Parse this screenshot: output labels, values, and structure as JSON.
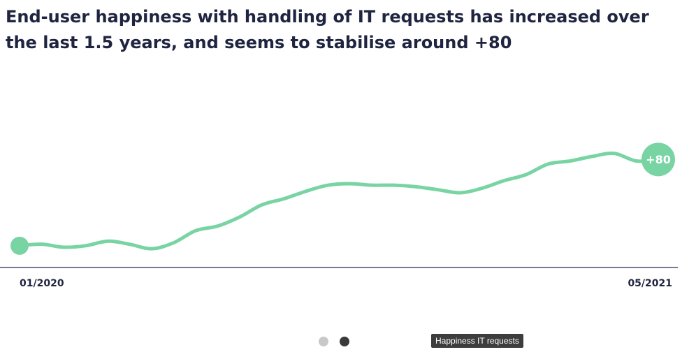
{
  "title": "End-user happiness with handling of IT requests has increased over the last 1.5 years, and seems to stabilise around +80",
  "colors": {
    "line": "#79d4a4",
    "axis": "#4a4f6a",
    "text": "#1f2440"
  },
  "chart_data": {
    "type": "line",
    "title": "End-user happiness with handling of IT requests has increased over the last 1.5 years, and seems to stabilise around +80",
    "xlabel": "",
    "ylabel": "",
    "x_tick_labels": [
      "01/2020",
      "05/2021"
    ],
    "grid": false,
    "end_label": "+80",
    "y_domain": [
      10,
      130
    ],
    "series": [
      {
        "values": [
          23,
          24,
          22,
          23,
          26,
          24,
          21,
          25,
          33,
          36,
          42,
          50,
          54,
          59,
          63,
          64,
          63,
          63,
          62,
          60,
          58,
          61,
          66,
          70,
          77,
          79,
          82,
          84,
          79,
          80
        ]
      }
    ]
  },
  "pagination": {
    "dots": [
      "page-1",
      "page-2"
    ],
    "active_index": 1
  },
  "tooltip_text": "Happiness IT requests"
}
